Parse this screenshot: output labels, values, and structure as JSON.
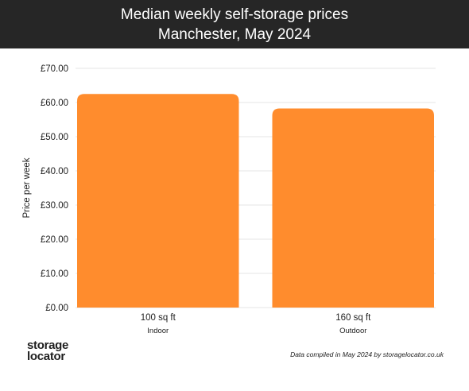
{
  "header": {
    "title_line1": "Median weekly self-storage prices",
    "title_line2": "Manchester, May 2024"
  },
  "footer": {
    "logo_line1": "storage",
    "logo_line2": "locator",
    "note": "Data compiled in May 2024 by storagelocator.co.uk"
  },
  "colors": {
    "bar": "#ff8c2d",
    "header_bg": "#262626",
    "grid": "#e6e6e6"
  },
  "chart_data": {
    "type": "bar",
    "title": "Median weekly self-storage prices",
    "subtitle": "Manchester, May 2024",
    "xlabel": "",
    "ylabel": "Price per week",
    "categories": [
      "100 sq ft",
      "160 sq ft"
    ],
    "category_sublabels": [
      "Indoor",
      "Outdoor"
    ],
    "values": [
      62.5,
      58.25
    ],
    "ylim": [
      0,
      70
    ],
    "yticks": [
      0,
      10,
      20,
      30,
      40,
      50,
      60,
      70
    ],
    "ytick_labels": [
      "£0.00",
      "£10.00",
      "£20.00",
      "£30.00",
      "£40.00",
      "£50.00",
      "£60.00",
      "£70.00"
    ],
    "grid": true,
    "legend": "none"
  }
}
